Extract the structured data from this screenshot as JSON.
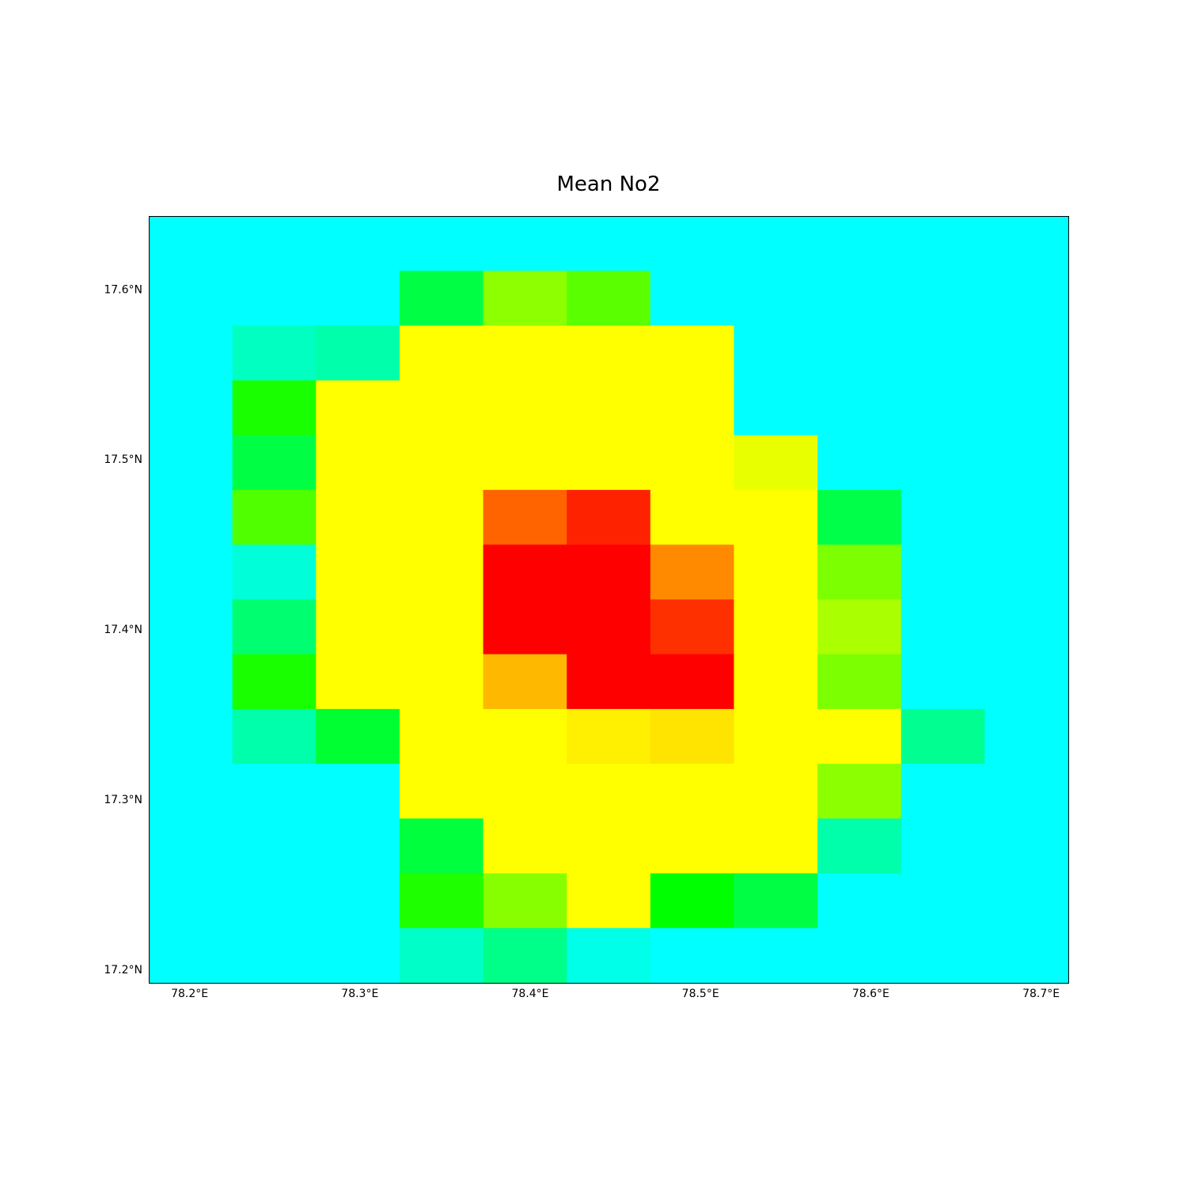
{
  "chart_data": {
    "type": "heatmap",
    "title": "Mean No2",
    "xlabel": "",
    "ylabel": "",
    "x_ticks": [
      {
        "value": 78.2,
        "label": "78.2°E"
      },
      {
        "value": 78.3,
        "label": "78.3°E"
      },
      {
        "value": 78.4,
        "label": "78.4°E"
      },
      {
        "value": 78.5,
        "label": "78.5°E"
      },
      {
        "value": 78.6,
        "label": "78.6°E"
      },
      {
        "value": 78.7,
        "label": "78.7°E"
      }
    ],
    "y_ticks": [
      {
        "value": 17.6,
        "label": "17.6°N"
      },
      {
        "value": 17.5,
        "label": "17.5°N"
      },
      {
        "value": 17.4,
        "label": "17.4°N"
      },
      {
        "value": 17.3,
        "label": "17.3°N"
      },
      {
        "value": 17.2,
        "label": "17.2°N"
      }
    ],
    "xlim": [
      78.176,
      78.716
    ],
    "ylim": [
      17.192,
      17.643
    ],
    "cell_centers_lon": [
      78.2,
      78.249,
      78.298,
      78.347,
      78.396,
      78.445,
      78.494,
      78.543,
      78.592,
      78.641,
      78.69
    ],
    "cell_centers_lat": [
      17.627,
      17.595,
      17.563,
      17.531,
      17.499,
      17.467,
      17.434,
      17.402,
      17.37,
      17.338,
      17.306,
      17.274,
      17.241,
      17.209
    ],
    "grid": [
      [
        "#00ffff",
        "#00ffff",
        "#00ffff",
        "#00ffff",
        "#00ffff",
        "#00ffff",
        "#00ffff",
        "#00ffff",
        "#00ffff",
        "#00ffff",
        "#00ffff"
      ],
      [
        "#00ffff",
        "#00ffff",
        "#00ffff",
        "#00ff44",
        "#8dff00",
        "#5aff00",
        "#00ffff",
        "#00ffff",
        "#00ffff",
        "#00ffff",
        "#00ffff"
      ],
      [
        "#00ffff",
        "#00ffc0",
        "#00ffaa",
        "#ffff00",
        "#ffff00",
        "#ffff00",
        "#ffff00",
        "#00ffff",
        "#00ffff",
        "#00ffff",
        "#00ffff"
      ],
      [
        "#00ffff",
        "#1aff00",
        "#ffff00",
        "#ffff00",
        "#ffff00",
        "#ffff00",
        "#ffff00",
        "#00ffff",
        "#00ffff",
        "#00ffff",
        "#00ffff"
      ],
      [
        "#00ffff",
        "#00ff44",
        "#ffff00",
        "#ffff00",
        "#ffff00",
        "#ffff00",
        "#ffff00",
        "#e8ff00",
        "#00ffff",
        "#00ffff",
        "#00ffff"
      ],
      [
        "#00ffff",
        "#50ff00",
        "#ffff00",
        "#ffff00",
        "#ff6400",
        "#ff2200",
        "#ffff00",
        "#ffff00",
        "#00ff48",
        "#00ffff",
        "#00ffff"
      ],
      [
        "#00ffff",
        "#00ffd8",
        "#ffff00",
        "#ffff00",
        "#ff0000",
        "#ff0000",
        "#ff8a00",
        "#ffff00",
        "#7cff00",
        "#00ffff",
        "#00ffff"
      ],
      [
        "#00ffff",
        "#00ff70",
        "#ffff00",
        "#ffff00",
        "#ff0000",
        "#ff0000",
        "#ff3000",
        "#ffff00",
        "#aaff00",
        "#00ffff",
        "#00ffff"
      ],
      [
        "#00ffff",
        "#1aff00",
        "#ffff00",
        "#ffff00",
        "#ffb800",
        "#ff0000",
        "#ff0000",
        "#ffff00",
        "#7cff00",
        "#00ffff",
        "#00ffff"
      ],
      [
        "#00ffff",
        "#00ffaa",
        "#00ff32",
        "#ffff00",
        "#ffff00",
        "#ffef00",
        "#ffe400",
        "#ffff00",
        "#ffff00",
        "#00ff90",
        "#00ffff"
      ],
      [
        "#00ffff",
        "#00ffff",
        "#00ffff",
        "#ffff00",
        "#ffff00",
        "#ffff00",
        "#ffff00",
        "#ffff00",
        "#8cff00",
        "#00ffff",
        "#00ffff"
      ],
      [
        "#00ffff",
        "#00ffff",
        "#00ffff",
        "#00ff3c",
        "#ffff00",
        "#ffff00",
        "#ffff00",
        "#ffff00",
        "#00ffaa",
        "#00ffff",
        "#00ffff"
      ],
      [
        "#00ffff",
        "#00ffff",
        "#00ffff",
        "#1eff00",
        "#88ff00",
        "#ffff00",
        "#00ff00",
        "#00ff44",
        "#00ffff",
        "#00ffff",
        "#00ffff"
      ],
      [
        "#00ffff",
        "#00ffff",
        "#00ffff",
        "#00ffc8",
        "#00ff88",
        "#00ffe8",
        "#00ffff",
        "#00ffff",
        "#00ffff",
        "#00ffff",
        "#00ffff"
      ]
    ]
  }
}
